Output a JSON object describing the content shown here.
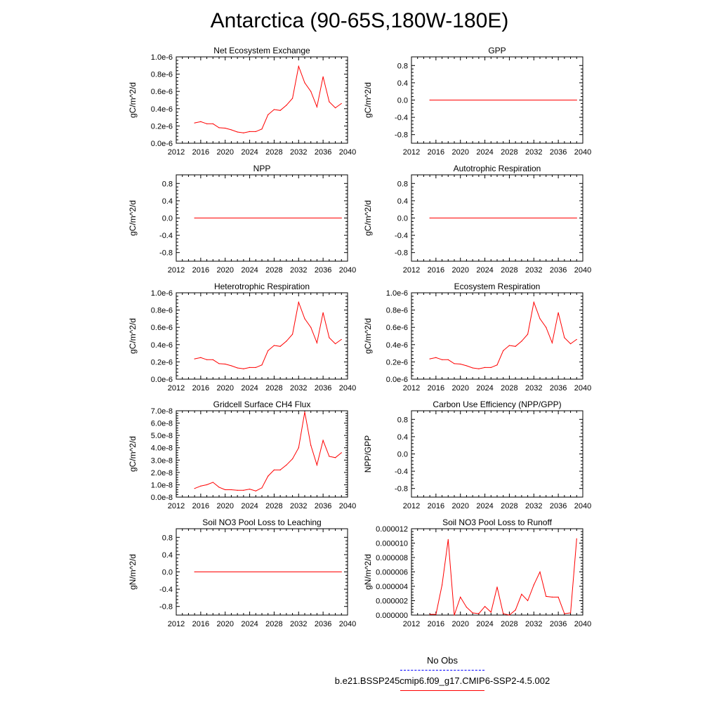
{
  "title": "Antarctica (90-65S,180W-180E)",
  "colors": {
    "model": "#ff0000",
    "obs": "#0000ff",
    "axis": "#000000"
  },
  "legend": {
    "obs_label": "No Obs",
    "model_label": "b.e21.BSSP245cmip6.f09_g17.CMIP6-SSP2-4.5.002"
  },
  "chart_data": [
    {
      "type": "line",
      "id": "nee",
      "title": "Net Ecosystem Exchange",
      "ylabel": "gC/m^2/d",
      "xlim": [
        2012,
        2040
      ],
      "xticks": [
        "2012",
        "2016",
        "2020",
        "2024",
        "2028",
        "2032",
        "2036",
        "2040"
      ],
      "ylim": [
        0,
        1.0
      ],
      "yticks": [
        0,
        0.2,
        0.4,
        0.6,
        0.8,
        1.0
      ],
      "yticklabels": [
        "0.0e-6",
        "0.2e-6",
        "0.4e-6",
        "0.6e-6",
        "0.8e-6",
        "1.0e-6"
      ],
      "x": [
        2015,
        2016,
        2017,
        2018,
        2019,
        2020,
        2021,
        2022,
        2023,
        2024,
        2025,
        2026,
        2027,
        2028,
        2029,
        2030,
        2031,
        2032,
        2033,
        2034,
        2035,
        2036,
        2037,
        2038,
        2039
      ],
      "values": [
        0.235,
        0.25,
        0.225,
        0.225,
        0.18,
        0.175,
        0.155,
        0.13,
        0.12,
        0.135,
        0.135,
        0.165,
        0.33,
        0.39,
        0.38,
        0.44,
        0.52,
        0.89,
        0.7,
        0.6,
        0.42,
        0.77,
        0.48,
        0.41,
        0.46
      ]
    },
    {
      "type": "line",
      "id": "gpp",
      "title": "GPP",
      "ylabel": "gC/m^2/d",
      "xlim": [
        2012,
        2040
      ],
      "xticks": [
        "2012",
        "2016",
        "2020",
        "2024",
        "2028",
        "2032",
        "2036",
        "2040"
      ],
      "ylim": [
        -1,
        1
      ],
      "yticks": [
        -0.8,
        -0.4,
        0,
        0.4,
        0.8
      ],
      "yticklabels": [
        "-0.8",
        "-0.4",
        "0.0",
        "0.4",
        "0.8"
      ],
      "x": [
        2015,
        2039
      ],
      "values": [
        0,
        0
      ]
    },
    {
      "type": "line",
      "id": "npp",
      "title": "NPP",
      "ylabel": "gC/m^2/d",
      "xlim": [
        2012,
        2040
      ],
      "xticks": [
        "2012",
        "2016",
        "2020",
        "2024",
        "2028",
        "2032",
        "2036",
        "2040"
      ],
      "ylim": [
        -1,
        1
      ],
      "yticks": [
        -0.8,
        -0.4,
        0,
        0.4,
        0.8
      ],
      "yticklabels": [
        "-0.8",
        "-0.4",
        "0.0",
        "0.4",
        "0.8"
      ],
      "x": [
        2015,
        2039
      ],
      "values": [
        0,
        0
      ]
    },
    {
      "type": "line",
      "id": "ar",
      "title": "Autotrophic Respiration",
      "ylabel": "gC/m^2/d",
      "xlim": [
        2012,
        2040
      ],
      "xticks": [
        "2012",
        "2016",
        "2020",
        "2024",
        "2028",
        "2032",
        "2036",
        "2040"
      ],
      "ylim": [
        -1,
        1
      ],
      "yticks": [
        -0.8,
        -0.4,
        0,
        0.4,
        0.8
      ],
      "yticklabels": [
        "-0.8",
        "-0.4",
        "0.0",
        "0.4",
        "0.8"
      ],
      "x": [
        2015,
        2039
      ],
      "values": [
        0,
        0
      ]
    },
    {
      "type": "line",
      "id": "hr",
      "title": "Heterotrophic Respiration",
      "ylabel": "gC/m^2/d",
      "xlim": [
        2012,
        2040
      ],
      "xticks": [
        "2012",
        "2016",
        "2020",
        "2024",
        "2028",
        "2032",
        "2036",
        "2040"
      ],
      "ylim": [
        0,
        1.0
      ],
      "yticks": [
        0,
        0.2,
        0.4,
        0.6,
        0.8,
        1.0
      ],
      "yticklabels": [
        "0.0e-6",
        "0.2e-6",
        "0.4e-6",
        "0.6e-6",
        "0.8e-6",
        "1.0e-6"
      ],
      "x": [
        2015,
        2016,
        2017,
        2018,
        2019,
        2020,
        2021,
        2022,
        2023,
        2024,
        2025,
        2026,
        2027,
        2028,
        2029,
        2030,
        2031,
        2032,
        2033,
        2034,
        2035,
        2036,
        2037,
        2038,
        2039
      ],
      "values": [
        0.235,
        0.25,
        0.225,
        0.225,
        0.18,
        0.175,
        0.155,
        0.13,
        0.12,
        0.135,
        0.135,
        0.165,
        0.33,
        0.39,
        0.38,
        0.44,
        0.52,
        0.89,
        0.7,
        0.6,
        0.42,
        0.77,
        0.48,
        0.41,
        0.46
      ]
    },
    {
      "type": "line",
      "id": "er",
      "title": "Ecosystem Respiration",
      "ylabel": "gC/m^2/d",
      "xlim": [
        2012,
        2040
      ],
      "xticks": [
        "2012",
        "2016",
        "2020",
        "2024",
        "2028",
        "2032",
        "2036",
        "2040"
      ],
      "ylim": [
        0,
        1.0
      ],
      "yticks": [
        0,
        0.2,
        0.4,
        0.6,
        0.8,
        1.0
      ],
      "yticklabels": [
        "0.0e-6",
        "0.2e-6",
        "0.4e-6",
        "0.6e-6",
        "0.8e-6",
        "1.0e-6"
      ],
      "x": [
        2015,
        2016,
        2017,
        2018,
        2019,
        2020,
        2021,
        2022,
        2023,
        2024,
        2025,
        2026,
        2027,
        2028,
        2029,
        2030,
        2031,
        2032,
        2033,
        2034,
        2035,
        2036,
        2037,
        2038,
        2039
      ],
      "values": [
        0.235,
        0.25,
        0.225,
        0.225,
        0.18,
        0.175,
        0.155,
        0.13,
        0.12,
        0.135,
        0.135,
        0.165,
        0.33,
        0.39,
        0.38,
        0.44,
        0.52,
        0.89,
        0.7,
        0.6,
        0.42,
        0.77,
        0.48,
        0.41,
        0.46
      ]
    },
    {
      "type": "line",
      "id": "ch4",
      "title": "Gridcell Surface CH4 Flux",
      "ylabel": "gC/m^2/d",
      "xlim": [
        2012,
        2040
      ],
      "xticks": [
        "2012",
        "2016",
        "2020",
        "2024",
        "2028",
        "2032",
        "2036",
        "2040"
      ],
      "ylim": [
        0,
        7.0
      ],
      "yticks": [
        0,
        1,
        2,
        3,
        4,
        5,
        6,
        7
      ],
      "yticklabels": [
        "0.0e-8",
        "1.0e-8",
        "2.0e-8",
        "3.0e-8",
        "4.0e-8",
        "5.0e-8",
        "6.0e-8",
        "7.0e-8"
      ],
      "x": [
        2015,
        2016,
        2017,
        2018,
        2019,
        2020,
        2021,
        2022,
        2023,
        2024,
        2025,
        2026,
        2027,
        2028,
        2029,
        2030,
        2031,
        2032,
        2033,
        2034,
        2035,
        2036,
        2037,
        2038,
        2039
      ],
      "values": [
        0.7,
        0.9,
        1.0,
        1.2,
        0.8,
        0.6,
        0.6,
        0.55,
        0.55,
        0.65,
        0.5,
        0.75,
        1.7,
        2.2,
        2.2,
        2.6,
        3.1,
        4.0,
        6.9,
        4.2,
        2.6,
        4.6,
        3.3,
        3.2,
        3.6
      ]
    },
    {
      "type": "line",
      "id": "cue",
      "title": "Carbon Use Efficiency (NPP/GPP)",
      "ylabel": "NPP/GPP",
      "xlim": [
        2012,
        2040
      ],
      "xticks": [
        "2012",
        "2016",
        "2020",
        "2024",
        "2028",
        "2032",
        "2036",
        "2040"
      ],
      "ylim": [
        -1,
        1
      ],
      "yticks": [
        -0.8,
        -0.4,
        0,
        0.4,
        0.8
      ],
      "yticklabels": [
        "-0.8",
        "-0.4",
        "0.0",
        "0.4",
        "0.8"
      ],
      "x": [],
      "values": []
    },
    {
      "type": "line",
      "id": "leach",
      "title": "Soil NO3 Pool Loss to Leaching",
      "ylabel": "gN/m^2/d",
      "xlim": [
        2012,
        2040
      ],
      "xticks": [
        "2012",
        "2016",
        "2020",
        "2024",
        "2028",
        "2032",
        "2036",
        "2040"
      ],
      "ylim": [
        -1,
        1
      ],
      "yticks": [
        -0.8,
        -0.4,
        0,
        0.4,
        0.8
      ],
      "yticklabels": [
        "-0.8",
        "-0.4",
        "0.0",
        "0.4",
        "0.8"
      ],
      "x": [
        2015,
        2039
      ],
      "values": [
        0,
        0
      ]
    },
    {
      "type": "line",
      "id": "runoff",
      "title": "Soil NO3 Pool Loss to Runoff",
      "ylabel": "gN/m^2/d",
      "xlim": [
        2012,
        2040
      ],
      "xticks": [
        "2012",
        "2016",
        "2020",
        "2024",
        "2028",
        "2032",
        "2036",
        "2040"
      ],
      "ylim": [
        0,
        1.2e-05
      ],
      "yticks": [
        0,
        2e-06,
        4e-06,
        6e-06,
        8e-06,
        1e-05,
        1.2e-05
      ],
      "yticklabels": [
        "0.000000",
        "0.000002",
        "0.000004",
        "0.000006",
        "0.000008",
        "0.000010",
        "0.000012"
      ],
      "x": [
        2015,
        2016,
        2017,
        2018,
        2019,
        2020,
        2021,
        2022,
        2023,
        2024,
        2025,
        2026,
        2027,
        2028,
        2029,
        2030,
        2031,
        2032,
        2033,
        2034,
        2035,
        2036,
        2037,
        2038,
        2039
      ],
      "values": [
        1e-07,
        1e-07,
        4.2e-06,
        1.05e-05,
        0.0,
        2.5e-06,
        1.1e-06,
        3e-07,
        2e-07,
        1.2e-06,
        4e-07,
        3.9e-06,
        2e-07,
        0.0,
        7e-07,
        2.9e-06,
        2e-06,
        4.2e-06,
        6e-06,
        2.6e-06,
        2.5e-06,
        2.5e-06,
        2e-07,
        3e-07,
        1.06e-05
      ]
    }
  ]
}
